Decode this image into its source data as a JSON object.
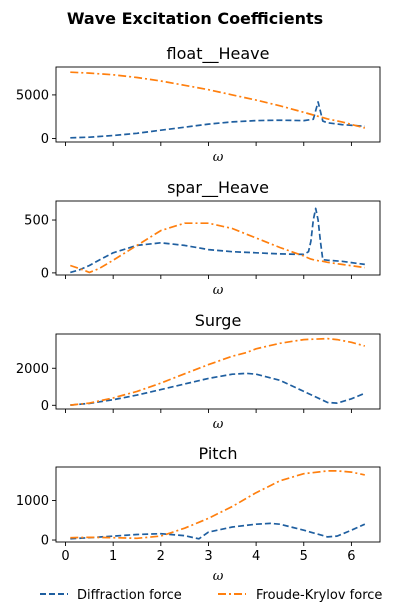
{
  "chart_data": [
    {
      "type": "line",
      "title": "float__Heave",
      "xlabel": "ω",
      "ylabel": "",
      "xlim": [
        -0.2,
        6.6
      ],
      "ylim": [
        -400,
        8200
      ],
      "yticks": [
        0,
        5000
      ],
      "x": [
        0.1,
        0.5,
        1.0,
        1.5,
        2.0,
        2.5,
        3.0,
        3.5,
        4.0,
        4.5,
        5.0,
        5.2,
        5.3,
        5.4,
        5.5,
        5.8,
        6.28
      ],
      "series": [
        {
          "name": "Diffraction force",
          "values": [
            80,
            150,
            350,
            600,
            950,
            1300,
            1650,
            1900,
            2050,
            2100,
            2050,
            2200,
            4200,
            2000,
            1800,
            1600,
            1400
          ]
        },
        {
          "name": "Froude-Krylov force",
          "values": [
            7600,
            7500,
            7300,
            7000,
            6600,
            6100,
            5600,
            5000,
            4400,
            3750,
            3000,
            2700,
            2550,
            2400,
            2250,
            1900,
            1200
          ]
        }
      ]
    },
    {
      "type": "line",
      "title": "spar__Heave",
      "xlabel": "ω",
      "ylabel": "",
      "xlim": [
        -0.2,
        6.6
      ],
      "ylim": [
        -20,
        680
      ],
      "yticks": [
        0,
        500
      ],
      "x": [
        0.1,
        0.3,
        0.5,
        0.7,
        1.0,
        1.5,
        2.0,
        2.5,
        3.0,
        3.5,
        4.0,
        4.5,
        5.0,
        5.1,
        5.15,
        5.2,
        5.25,
        5.3,
        5.35,
        5.4,
        5.5,
        5.8,
        6.28
      ],
      "series": [
        {
          "name": "Diffraction force",
          "values": [
            5,
            30,
            70,
            120,
            190,
            260,
            285,
            260,
            220,
            200,
            190,
            180,
            175,
            200,
            300,
            500,
            610,
            500,
            300,
            125,
            120,
            110,
            80
          ]
        },
        {
          "name": "Froude-Krylov force",
          "values": [
            70,
            40,
            5,
            40,
            120,
            260,
            400,
            470,
            470,
            420,
            330,
            240,
            160,
            140,
            130,
            125,
            120,
            115,
            112,
            110,
            100,
            80,
            50
          ]
        }
      ]
    },
    {
      "type": "line",
      "title": "Surge",
      "xlabel": "ω",
      "ylabel": "",
      "xlim": [
        -0.2,
        6.6
      ],
      "ylim": [
        -200,
        3850
      ],
      "yticks": [
        0,
        2000
      ],
      "x": [
        0.1,
        0.5,
        1.0,
        1.5,
        2.0,
        2.5,
        3.0,
        3.5,
        3.8,
        4.0,
        4.5,
        5.0,
        5.5,
        5.7,
        6.0,
        6.28
      ],
      "series": [
        {
          "name": "Diffraction force",
          "values": [
            10,
            100,
            300,
            550,
            850,
            1150,
            1450,
            1680,
            1720,
            1680,
            1350,
            750,
            150,
            120,
            350,
            650
          ]
        },
        {
          "name": "Froude-Krylov force",
          "values": [
            10,
            120,
            400,
            750,
            1200,
            1700,
            2200,
            2650,
            2850,
            3050,
            3350,
            3550,
            3600,
            3550,
            3400,
            3200
          ]
        }
      ]
    },
    {
      "type": "line",
      "title": "Pitch",
      "xlabel": "ω",
      "ylabel": "",
      "xlim": [
        -0.2,
        6.6
      ],
      "ylim": [
        -50,
        1850
      ],
      "yticks": [
        0,
        1000
      ],
      "xticks": [
        0,
        1,
        2,
        3,
        4,
        5,
        6
      ],
      "x": [
        0.1,
        0.5,
        1.0,
        1.5,
        2.0,
        2.5,
        2.8,
        3.0,
        3.5,
        4.0,
        4.3,
        4.5,
        5.0,
        5.5,
        5.7,
        6.0,
        6.28
      ],
      "series": [
        {
          "name": "Diffraction force",
          "values": [
            30,
            60,
            100,
            140,
            160,
            110,
            30,
            200,
            330,
            400,
            420,
            400,
            250,
            80,
            100,
            250,
            400
          ]
        },
        {
          "name": "Froude-Krylov force",
          "values": [
            60,
            70,
            60,
            45,
            100,
            300,
            450,
            550,
            850,
            1200,
            1380,
            1500,
            1680,
            1750,
            1750,
            1720,
            1650
          ]
        }
      ]
    }
  ],
  "suptitle": "Wave Excitation Coefficients",
  "legend": {
    "placement": "bottom-center",
    "items": [
      {
        "label": "Diffraction force",
        "color": "#1f5fa0",
        "style": "dashed"
      },
      {
        "label": "Froude-Krylov force",
        "color": "#ff7f0e",
        "style": "dashdot"
      }
    ]
  }
}
